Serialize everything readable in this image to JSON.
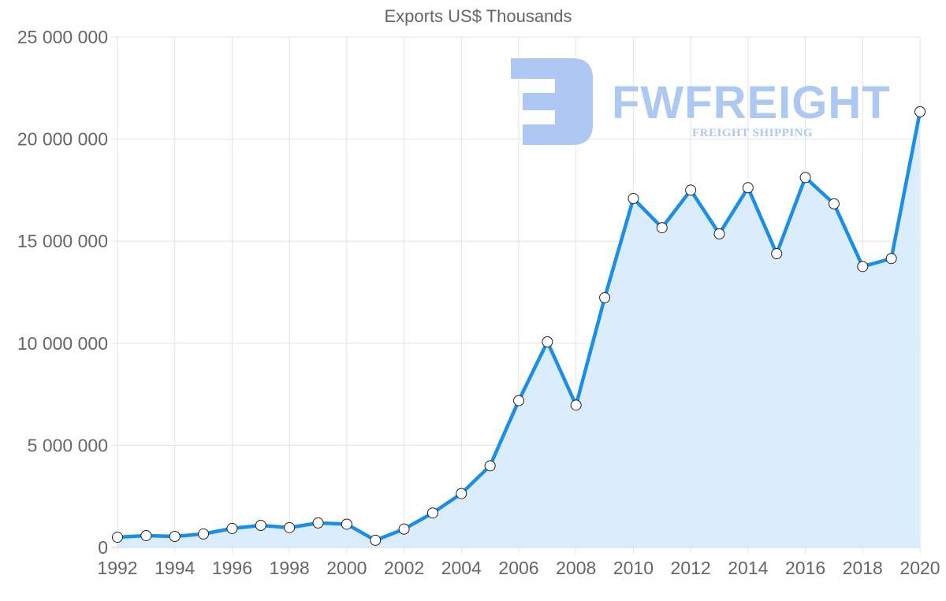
{
  "chart_data": {
    "type": "line",
    "title": "Exports US$ Thousands",
    "xlabel": "",
    "ylabel": "",
    "x": [
      1992,
      1993,
      1994,
      1995,
      1996,
      1997,
      1998,
      1999,
      2000,
      2001,
      2002,
      2003,
      2004,
      2005,
      2006,
      2007,
      2008,
      2009,
      2010,
      2011,
      2012,
      2013,
      2014,
      2015,
      2016,
      2017,
      2018,
      2019,
      2020
    ],
    "series": [
      {
        "name": "Exports US$ Thousands",
        "values": [
          500000,
          580000,
          540000,
          660000,
          930000,
          1080000,
          970000,
          1200000,
          1140000,
          350000,
          900000,
          1690000,
          2640000,
          4000000,
          7190000,
          10070000,
          6970000,
          12230000,
          17090000,
          15660000,
          17500000,
          15360000,
          17620000,
          14390000,
          18120000,
          16830000,
          13760000,
          14150000,
          21340000
        ],
        "color": "#1a8fe8",
        "fill": "#d9ecfc"
      }
    ],
    "ylim": [
      0,
      25000000
    ],
    "yticks": [
      "0",
      "5 000 000",
      "10 000 000",
      "15 000 000",
      "20 000 000",
      "25 000 000"
    ],
    "xticks": [
      "1992",
      "1994",
      "1996",
      "1998",
      "2000",
      "2002",
      "2004",
      "2006",
      "2008",
      "2010",
      "2012",
      "2014",
      "2016",
      "2018",
      "2020"
    ],
    "grid": true,
    "legend": "none",
    "filled_area": true
  },
  "watermark": {
    "brand": "FWFREIGHT",
    "tagline": "FREIGHT SHIPPING"
  }
}
